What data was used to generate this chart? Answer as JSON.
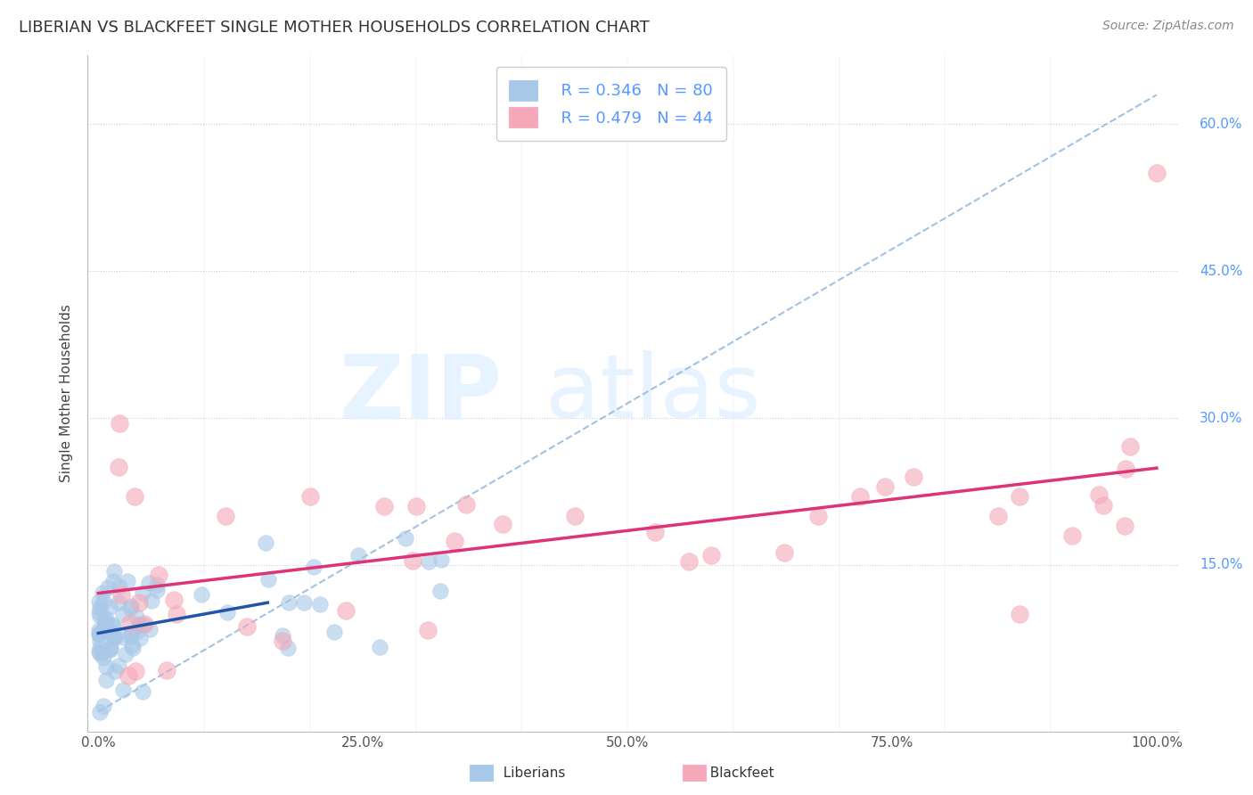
{
  "title": "LIBERIAN VS BLACKFEET SINGLE MOTHER HOUSEHOLDS CORRELATION CHART",
  "source": "Source: ZipAtlas.com",
  "ylabel": "Single Mother Households",
  "xlabel": "",
  "legend_label1": "Liberians",
  "legend_label2": "Blackfeet",
  "r1": 0.346,
  "n1": 80,
  "r2": 0.479,
  "n2": 44,
  "color1": "#a8c8e8",
  "color2": "#f4a8b8",
  "line1_color": "#2255aa",
  "line2_color": "#dd3377",
  "dashed_line_color": "#99bbdd",
  "background_color": "#ffffff",
  "grid_color": "#cccccc",
  "xlim": [
    -0.01,
    1.02
  ],
  "ylim": [
    -0.02,
    0.67
  ],
  "ytick_right_color": "#5599ff",
  "title_fontsize": 13,
  "axis_fontsize": 11,
  "tick_fontsize": 11,
  "legend_fontsize": 13,
  "source_fontsize": 10,
  "watermark_zip": "ZIP",
  "watermark_atlas": "atlas"
}
